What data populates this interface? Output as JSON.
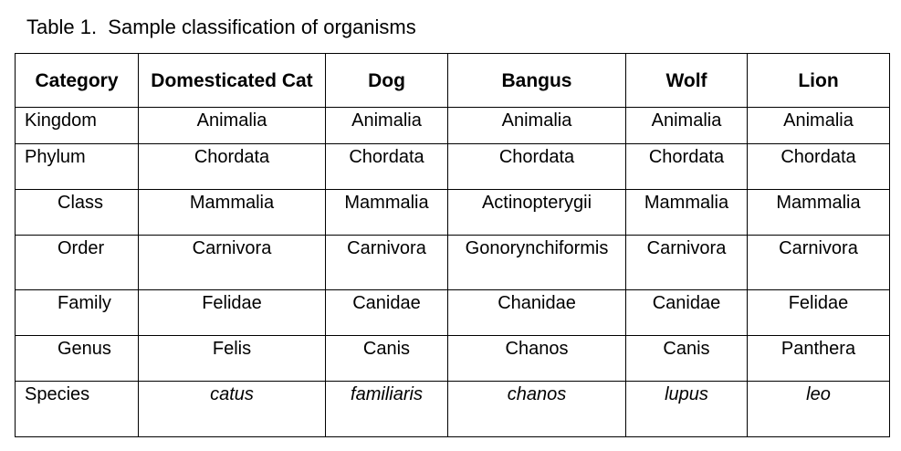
{
  "caption": "Table 1.  Sample classification of organisms",
  "table": {
    "headers": [
      "Category",
      "Domesticated Cat",
      "Dog",
      "Bangus",
      "Wolf",
      "Lion"
    ],
    "rows": [
      {
        "category": "Kingdom",
        "values": [
          "Animalia",
          "Animalia",
          "Animalia",
          "Animalia",
          "Animalia"
        ]
      },
      {
        "category": "Phylum",
        "values": [
          "Chordata",
          "Chordata",
          "Chordata",
          "Chordata",
          "Chordata"
        ]
      },
      {
        "category": "Class",
        "values": [
          "Mammalia",
          "Mammalia",
          "Actinopterygii",
          "Mammalia",
          "Mammalia"
        ]
      },
      {
        "category": "Order",
        "values": [
          "Carnivora",
          "Carnivora",
          "Gonorynchiformis",
          "Carnivora",
          "Carnivora"
        ]
      },
      {
        "category": "Family",
        "values": [
          "Felidae",
          "Canidae",
          "Chanidae",
          "Canidae",
          "Felidae"
        ]
      },
      {
        "category": "Genus",
        "values": [
          "Felis",
          "Canis",
          "Chanos",
          "Canis",
          "Panthera"
        ]
      },
      {
        "category": "Species",
        "values": [
          "catus",
          "familiaris",
          "chanos",
          "lupus",
          "leo"
        ]
      }
    ]
  }
}
